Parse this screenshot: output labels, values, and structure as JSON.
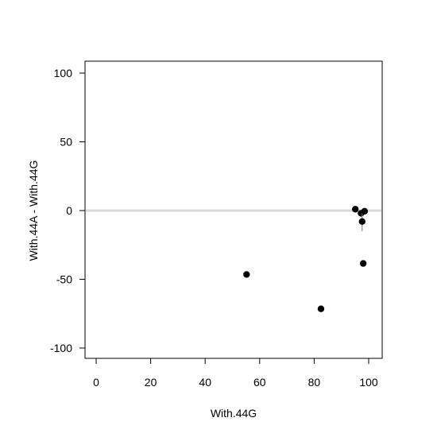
{
  "chart_data": {
    "type": "scatter",
    "xlabel": "With.44G",
    "ylabel": "With.44A - With.44G",
    "xlim": [
      0,
      100
    ],
    "ylim": [
      -100,
      100
    ],
    "x_ticks": [
      "0",
      "20",
      "40",
      "60",
      "80",
      "100"
    ],
    "y_ticks": [
      "-100",
      "-50",
      "0",
      "50",
      "100"
    ],
    "reference_line_y": 0,
    "grid": false,
    "points": [
      {
        "x": 55.2,
        "y": -46.5,
        "err": 1.5
      },
      {
        "x": 82.5,
        "y": -71.5,
        "err": 1.5
      },
      {
        "x": 95.1,
        "y": 1.0,
        "err": 1.5
      },
      {
        "x": 97.2,
        "y": -2.0,
        "err": 2.0
      },
      {
        "x": 97.6,
        "y": -8.0,
        "err": 7.0
      },
      {
        "x": 98.0,
        "y": -38.5,
        "err": 1.5
      },
      {
        "x": 98.5,
        "y": -0.5,
        "err": 1.5
      }
    ],
    "colors": {
      "points": "#000000",
      "reference_line": "#d9d9d9",
      "axes": "#000000"
    }
  }
}
